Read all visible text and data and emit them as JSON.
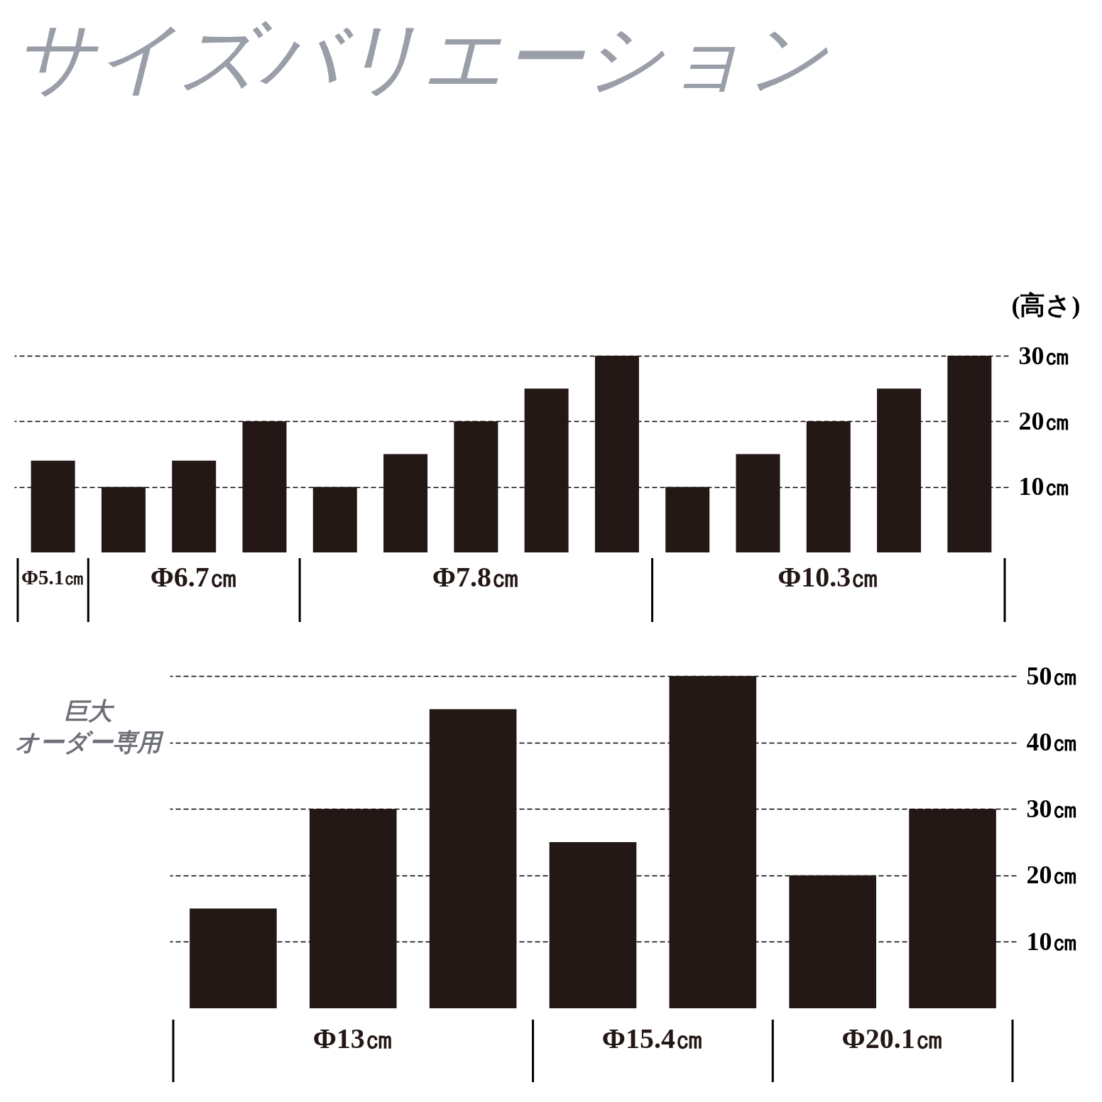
{
  "chart_data": [
    {
      "type": "bar",
      "title": "サイズバリエーション",
      "ylabel": "(高さ)",
      "categories": [
        null,
        null,
        null,
        null,
        null,
        null,
        null,
        null,
        null,
        null,
        null,
        null,
        null,
        null
      ],
      "series": [
        {
          "name": "Φ5.1㎝",
          "color": "#231815",
          "values": [
            14,
            null,
            null,
            null,
            null,
            null,
            null,
            null,
            null,
            null,
            null,
            null,
            null,
            null
          ]
        },
        {
          "name": "Φ6.7㎝",
          "color": "#231815",
          "values": [
            null,
            10,
            14,
            20,
            null,
            null,
            null,
            null,
            null,
            null,
            null,
            null,
            null,
            null
          ]
        },
        {
          "name": "Φ7.8㎝",
          "color": "#231815",
          "values": [
            null,
            null,
            null,
            null,
            10,
            15,
            20,
            25,
            30,
            null,
            null,
            null,
            null,
            null
          ]
        },
        {
          "name": "Φ10.3㎝",
          "color": "#231815",
          "values": [
            null,
            null,
            null,
            null,
            null,
            null,
            null,
            null,
            null,
            10,
            15,
            20,
            25,
            30
          ]
        }
      ],
      "ylim": [
        0,
        30
      ],
      "yticks": [
        {
          "value": 10,
          "label": "10㎝"
        },
        {
          "value": 20,
          "label": "20㎝"
        },
        {
          "value": 30,
          "label": "30㎝"
        }
      ],
      "grid": "y",
      "tick_labels": "y"
    },
    {
      "type": "bar",
      "categories": [
        null,
        null,
        null,
        null,
        null,
        null,
        null
      ],
      "series": [
        {
          "name": "Φ13㎝",
          "color": "#231815",
          "values": [
            15,
            30,
            45,
            null,
            null,
            null,
            null
          ]
        },
        {
          "name": "Φ15.4㎝",
          "color": "#231815",
          "values": [
            null,
            null,
            null,
            25,
            50,
            null,
            null
          ]
        },
        {
          "name": "Φ20.1㎝",
          "color": "#231815",
          "values": [
            null,
            null,
            null,
            null,
            null,
            20,
            30
          ]
        }
      ],
      "ylim": [
        0,
        50
      ],
      "yticks": [
        {
          "value": 10,
          "label": "10㎝"
        },
        {
          "value": 20,
          "label": "20㎝"
        },
        {
          "value": 30,
          "label": "30㎝"
        },
        {
          "value": 40,
          "label": "40㎝"
        },
        {
          "value": 50,
          "label": "50㎝"
        }
      ],
      "grid": "y",
      "tick_labels": "y",
      "annotations": [
        "巨大",
        "オーダー専用"
      ]
    }
  ]
}
